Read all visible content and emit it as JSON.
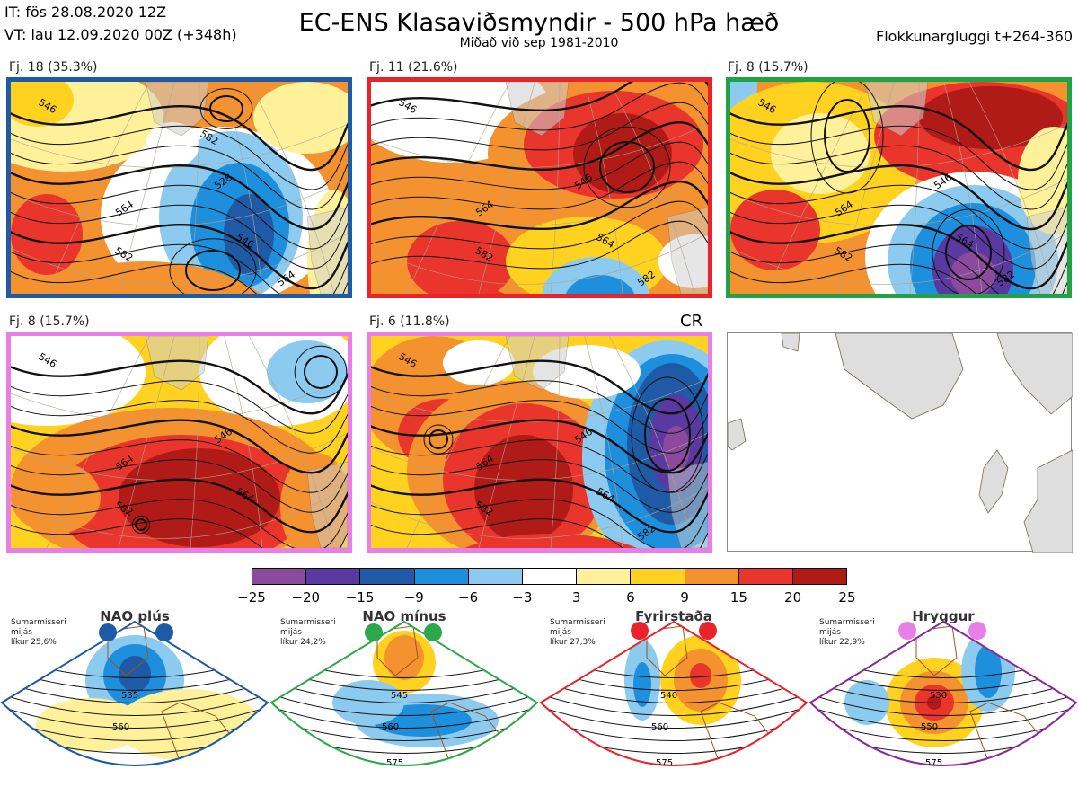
{
  "header": {
    "it": "IT: fös 28.08.2020 12Z",
    "vt": "VT: lau 12.09.2020 00Z  (+348h)",
    "title": "EC-ENS Klasaviðsmyndir - 500 hPa hæð",
    "subtitle": "Miðað við sep 1981-2010",
    "window": "Flokkunargluggi t+264-360"
  },
  "panels": [
    {
      "label": "Fj. 18 (35.3%)",
      "border": "#1f5aa6",
      "pattern": "A",
      "contours": [
        "546",
        "564",
        "582",
        "528",
        "546",
        "564",
        "582"
      ]
    },
    {
      "label": "Fj. 11 (21.6%)",
      "border": "#e8242a",
      "pattern": "B",
      "contours": [
        "546",
        "564",
        "582",
        "546",
        "564",
        "582"
      ]
    },
    {
      "label": "Fj. 8 (15.7%)",
      "border": "#22a246",
      "pattern": "C",
      "contours": [
        "546",
        "564",
        "582",
        "546",
        "564",
        "582"
      ]
    },
    {
      "label": "Fj. 8 (15.7%)",
      "border": "#e87ee8",
      "pattern": "D",
      "contours": [
        "546",
        "564",
        "582",
        "546",
        "564"
      ]
    },
    {
      "label": "Fj. 6 (11.8%)",
      "border": "#e87ee8",
      "pattern": "E",
      "contours": [
        "546",
        "564",
        "582",
        "546",
        "564",
        "582"
      ]
    }
  ],
  "cr_label": "CR",
  "chart_data": {
    "type": "heatmap",
    "title": "EC-ENS Klasaviðsmyndir - 500 hPa hæð",
    "colorbar": {
      "ticks": [
        "−25",
        "−20",
        "−15",
        "−9",
        "−6",
        "−3",
        "3",
        "6",
        "9",
        "15",
        "20",
        "25"
      ],
      "colors": [
        "#8b4a9e",
        "#5a3aa0",
        "#1f5aa6",
        "#1e8fdc",
        "#8ccbef",
        "#ffffff",
        "#fff19a",
        "#ffd21f",
        "#f3922e",
        "#e9352c",
        "#b01a17"
      ]
    },
    "clusters": [
      {
        "label": "Fj. 18 (35.3%)",
        "members": 18,
        "percent": 35.3
      },
      {
        "label": "Fj. 11 (21.6%)",
        "members": 11,
        "percent": 21.6
      },
      {
        "label": "Fj. 8 (15.7%)",
        "members": 8,
        "percent": 15.7
      },
      {
        "label": "Fj. 8 (15.7%)",
        "members": 8,
        "percent": 15.7
      },
      {
        "label": "Fj. 6 (11.8%)",
        "members": 6,
        "percent": 11.8
      }
    ]
  },
  "regimes": [
    {
      "name": "NAO plús",
      "color": "#1f5aa6",
      "season": "Sumarmisseri",
      "period": "mijás",
      "prob": "líkur 25,6%",
      "contours": [
        "535",
        "560"
      ]
    },
    {
      "name": "NAO mínus",
      "color": "#2ca84a",
      "season": "Sumarmisseri",
      "period": "mijás",
      "prob": "líkur 24,2%",
      "contours": [
        "545",
        "560",
        "575"
      ]
    },
    {
      "name": "Fyrirstaða",
      "color": "#e8242a",
      "season": "Sumarmisseri",
      "period": "mijás",
      "prob": "líkur 27,3%",
      "contours": [
        "540",
        "560",
        "575"
      ]
    },
    {
      "name": "Hryggur",
      "color": "#e87ee8",
      "border": "#8a2a9a",
      "season": "Sumarmisseri",
      "period": "mijás",
      "prob": "líkur 22,9%",
      "contours": [
        "530",
        "550",
        "575"
      ]
    }
  ]
}
